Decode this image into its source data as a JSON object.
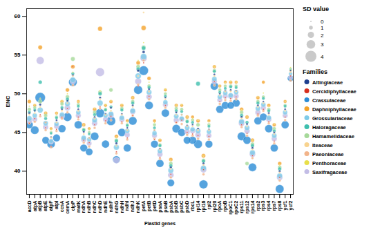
{
  "chart_data": {
    "type": "scatter",
    "x_label": "Plastid genes",
    "y_label": "ENC",
    "ylim": [
      37,
      61
    ],
    "yticks": [
      40,
      45,
      50,
      55,
      60
    ],
    "legend": "right",
    "legend_title": "Families",
    "size_title": "SD value",
    "size_ticks": [
      0,
      1,
      2,
      3,
      4
    ],
    "categories": [
      "accD",
      "atpA",
      "atpB",
      "atpE",
      "atpF",
      "atpI",
      "ccsA",
      "cemA",
      "clpP",
      "matK",
      "ndhA",
      "ndhB",
      "ndhC",
      "ndhD",
      "ndhE",
      "ndhF",
      "ndhG",
      "ndhH",
      "ndhI",
      "ndhJ",
      "ndhK",
      "petA",
      "petB",
      "petD",
      "psaA",
      "psaB",
      "psbA",
      "psbB",
      "psbC",
      "psbD",
      "rbcL",
      "rpl14",
      "rpl16",
      "rpl2",
      "rpl20",
      "rpoA",
      "rpoB",
      "rpoC1",
      "rpoC2",
      "rps11",
      "rps12",
      "rps14",
      "rps2",
      "rps3",
      "rps4",
      "rps7",
      "rps8",
      "ycf1",
      "ycf2"
    ],
    "series": [
      {
        "name": "Altingiaceae",
        "color": "#1f3f8f",
        "values": [
          47.5,
          47.8,
          48.6,
          46.3,
          44.4,
          46.6,
          48.0,
          49.1,
          52.4,
          48.0,
          45.1,
          44.3,
          47.0,
          49.5,
          47.4,
          48.2,
          43.6,
          47.4,
          45.6,
          48.5,
          53.0,
          55.4,
          50.6,
          45.3,
          42.9,
          49.5,
          40.5,
          47.6,
          47.3,
          45.9,
          46.0,
          45.5,
          41.0,
          45.4,
          52.5,
          50.0,
          50.4,
          50.5,
          50.4,
          47.0,
          46.1,
          43.0,
          48.5,
          49.0,
          47.5,
          45.0,
          40.0,
          48.0,
          53.0
        ],
        "sd": [
          0.3,
          0.2,
          0.4,
          0.3,
          0.2,
          0.3,
          0.2,
          0.3,
          0.4,
          0.2,
          0.3,
          0.2,
          0.3,
          0.4,
          0.2,
          0.3,
          0.4,
          0.3,
          0.2,
          0.3,
          0.5,
          0.6,
          0.3,
          0.2,
          0.3,
          0.2,
          0.4,
          0.3,
          0.2,
          0.3,
          0.2,
          0.3,
          0.4,
          0.2,
          0.3,
          0.2,
          0.2,
          0.3,
          0.2,
          0.4,
          0.3,
          0.4,
          0.3,
          0.2,
          0.3,
          0.3,
          0.4,
          0.2,
          0.1
        ]
      },
      {
        "name": "Cercidiphyllaceae",
        "color": "#d7301f",
        "values": [
          46.2,
          46.8,
          47.3,
          45.6,
          43.2,
          45.4,
          47.0,
          48.1,
          53.5,
          47.0,
          44.0,
          43.7,
          46.0,
          48.3,
          46.5,
          47.1,
          42.5,
          46.4,
          44.3,
          47.2,
          51.0,
          54.0,
          49.7,
          44.1,
          41.8,
          48.5,
          39.6,
          46.3,
          46.6,
          45.0,
          44.8,
          44.6,
          40.2,
          44.5,
          51.6,
          49.0,
          49.5,
          49.4,
          49.6,
          46.0,
          44.9,
          42.0,
          47.4,
          48.0,
          46.4,
          43.9,
          39.2,
          47.0,
          52.3
        ],
        "sd": [
          0,
          0,
          0,
          0,
          0,
          0,
          0,
          0,
          0,
          0,
          0,
          0,
          0,
          0,
          0,
          0,
          0,
          0,
          0,
          0,
          0,
          0,
          0,
          0,
          0,
          0,
          0,
          0,
          0,
          0,
          0,
          0,
          0,
          0,
          0,
          0,
          0,
          0,
          0,
          0,
          0,
          0,
          0,
          0,
          0,
          0,
          0,
          0,
          0
        ]
      },
      {
        "name": "Crassulaceae",
        "color": "#2b8cd6",
        "values": [
          46.0,
          45.3,
          49.5,
          44.0,
          43.5,
          44.3,
          45.5,
          47.0,
          51.5,
          46.0,
          43.0,
          42.5,
          44.5,
          47.5,
          43.5,
          46.5,
          41.5,
          45.0,
          43.0,
          46.5,
          50.5,
          53.0,
          48.5,
          43.5,
          41.0,
          47.5,
          38.5,
          45.5,
          45.0,
          44.0,
          44.0,
          43.5,
          38.3,
          43.5,
          51.0,
          48.0,
          48.5,
          48.5,
          48.8,
          44.5,
          44.0,
          40.5,
          46.5,
          47.0,
          45.5,
          43.0,
          37.7,
          46.0,
          52.0
        ],
        "sd": [
          2.5,
          2.8,
          3.6,
          2.4,
          2.7,
          2.5,
          2.6,
          3.0,
          2.9,
          2.7,
          2.5,
          2.4,
          2.8,
          3.1,
          2.6,
          3.2,
          2.5,
          2.7,
          2.6,
          2.9,
          3.0,
          3.3,
          2.8,
          2.5,
          2.6,
          2.7,
          2.4,
          2.8,
          2.6,
          2.5,
          2.6,
          2.9,
          3.0,
          2.5,
          2.7,
          2.6,
          2.5,
          2.4,
          2.6,
          2.9,
          2.7,
          2.8,
          2.6,
          2.5,
          2.7,
          2.6,
          2.9,
          2.6,
          2.0
        ]
      },
      {
        "name": "Daphniphyllaceae",
        "color": "#f4a32a",
        "values": [
          49.0,
          48.5,
          56.0,
          47.5,
          45.5,
          47.5,
          49.0,
          50.5,
          53.5,
          49.0,
          46.0,
          45.5,
          48.0,
          58.4,
          48.5,
          49.0,
          44.5,
          48.5,
          46.5,
          49.5,
          54.0,
          58.5,
          52.0,
          46.5,
          44.0,
          50.5,
          41.5,
          48.5,
          48.5,
          47.0,
          47.0,
          46.5,
          42.0,
          46.5,
          53.5,
          51.0,
          51.5,
          51.5,
          51.5,
          48.0,
          47.0,
          44.0,
          49.5,
          51.5,
          48.5,
          46.0,
          41.0,
          49.0,
          53.0
        ],
        "sd": [
          1.0,
          0.8,
          1.2,
          0.9,
          0.7,
          0.8,
          0.9,
          1.0,
          1.1,
          0.8,
          0.9,
          0.7,
          1.0,
          1.3,
          0.8,
          0.9,
          1.0,
          0.9,
          0.8,
          0.9,
          1.1,
          1.4,
          1.0,
          0.8,
          0.9,
          0.8,
          1.0,
          0.9,
          0.8,
          0.9,
          0.8,
          1.0,
          1.1,
          0.8,
          0.9,
          0.8,
          0.8,
          0.9,
          0.8,
          1.0,
          0.9,
          1.0,
          0.9,
          0.8,
          0.9,
          0.9,
          1.0,
          0.8,
          0.5
        ]
      },
      {
        "name": "Grossulariaceae",
        "color": "#7fcbe8",
        "values": [
          46.8,
          47.2,
          47.9,
          46.2,
          43.9,
          46.1,
          47.3,
          48.7,
          51.8,
          47.6,
          44.3,
          44.1,
          46.6,
          48.8,
          47.2,
          47.4,
          43.1,
          46.9,
          45.2,
          47.8,
          52.3,
          54.8,
          50.2,
          44.9,
          42.6,
          48.9,
          40.1,
          47.1,
          46.8,
          45.6,
          45.4,
          45.2,
          40.4,
          45.1,
          51.9,
          49.6,
          50.1,
          49.8,
          50.2,
          46.4,
          45.6,
          42.4,
          48.1,
          48.6,
          46.9,
          44.6,
          39.4,
          47.6,
          52.6
        ],
        "sd": [
          1.6,
          1.4,
          1.8,
          1.5,
          1.3,
          1.4,
          1.5,
          1.6,
          1.7,
          1.4,
          1.5,
          1.3,
          1.6,
          1.8,
          1.4,
          1.6,
          1.7,
          1.5,
          1.4,
          1.6,
          1.9,
          2.0,
          1.6,
          1.4,
          1.5,
          1.4,
          1.7,
          1.5,
          1.4,
          1.5,
          1.4,
          1.6,
          1.8,
          1.4,
          1.5,
          1.4,
          1.4,
          1.5,
          1.4,
          1.7,
          1.6,
          1.7,
          1.5,
          1.4,
          1.5,
          1.5,
          1.7,
          1.4,
          1.0
        ]
      },
      {
        "name": "Haloragaceae",
        "color": "#3fbfae",
        "values": [
          47.6,
          47.9,
          51.5,
          46.8,
          44.9,
          46.9,
          48.2,
          49.3,
          52.6,
          48.4,
          45.3,
          44.8,
          47.3,
          50.0,
          47.9,
          48.3,
          43.9,
          47.9,
          45.9,
          48.8,
          53.2,
          55.9,
          50.8,
          45.6,
          43.3,
          49.7,
          40.7,
          47.8,
          47.7,
          46.4,
          46.3,
          51.3,
          41.3,
          45.8,
          52.9,
          50.2,
          50.7,
          50.9,
          50.8,
          47.2,
          46.3,
          43.3,
          48.8,
          49.4,
          47.8,
          45.2,
          40.3,
          48.4,
          53.2
        ],
        "sd": [
          0.8,
          0.7,
          1.0,
          0.8,
          0.6,
          0.7,
          0.8,
          0.9,
          0.8,
          0.7,
          0.8,
          0.6,
          0.8,
          1.0,
          0.7,
          0.8,
          0.9,
          0.8,
          0.7,
          0.8,
          1.0,
          1.1,
          0.8,
          0.7,
          0.8,
          0.7,
          0.9,
          0.8,
          0.7,
          0.8,
          0.7,
          1.2,
          0.9,
          0.7,
          0.8,
          0.7,
          0.7,
          0.8,
          0.7,
          0.9,
          0.8,
          0.9,
          0.8,
          0.7,
          0.8,
          0.8,
          0.9,
          0.7,
          0.5
        ]
      },
      {
        "name": "Hamamelidaceae",
        "color": "#a6d99a",
        "values": [
          48.0,
          48.2,
          49.0,
          47.2,
          45.0,
          47.0,
          48.7,
          49.6,
          54.5,
          48.6,
          45.4,
          45.0,
          47.6,
          50.2,
          48.0,
          50.5,
          44.0,
          48.1,
          46.0,
          49.0,
          53.5,
          56.0,
          51.0,
          46.0,
          43.4,
          50.0,
          41.0,
          48.1,
          48.0,
          46.5,
          46.6,
          46.0,
          41.4,
          46.0,
          53.0,
          50.5,
          51.0,
          51.0,
          51.0,
          47.6,
          41.0,
          43.5,
          49.0,
          49.6,
          48.0,
          45.5,
          40.5,
          48.5,
          53.1
        ],
        "sd": [
          0.9,
          0.8,
          1.1,
          0.9,
          0.7,
          0.8,
          0.9,
          1.0,
          1.2,
          0.8,
          0.9,
          0.7,
          0.9,
          1.1,
          0.8,
          1.0,
          1.0,
          0.9,
          0.8,
          0.9,
          1.1,
          1.2,
          0.9,
          0.8,
          0.9,
          0.8,
          1.0,
          0.9,
          0.8,
          0.9,
          0.8,
          1.0,
          1.0,
          0.8,
          0.9,
          0.8,
          0.8,
          0.9,
          0.8,
          1.0,
          1.0,
          1.0,
          0.9,
          0.8,
          0.9,
          0.9,
          1.0,
          0.8,
          0.4
        ]
      },
      {
        "name": "Iteaceae",
        "color": "#f8d38f",
        "values": [
          47.3,
          47.5,
          48.3,
          46.3,
          44.3,
          46.3,
          47.8,
          48.8,
          52.3,
          47.8,
          44.8,
          44.3,
          46.8,
          49.3,
          47.3,
          47.8,
          43.3,
          47.3,
          45.3,
          48.3,
          52.3,
          60.5,
          50.3,
          45.3,
          42.8,
          49.3,
          40.3,
          47.3,
          47.3,
          45.8,
          45.8,
          45.3,
          40.8,
          45.3,
          52.3,
          49.8,
          50.3,
          50.3,
          50.3,
          46.8,
          45.8,
          42.8,
          48.3,
          48.8,
          47.3,
          44.8,
          39.8,
          47.8,
          52.8
        ],
        "sd": [
          0.2,
          0.2,
          0.2,
          0.2,
          0.2,
          0.2,
          0.2,
          0.2,
          0.2,
          0.2,
          0.2,
          0.2,
          0.2,
          0.2,
          0.2,
          0.2,
          0.2,
          0.2,
          0.2,
          0.2,
          0.2,
          0.2,
          0.2,
          0.2,
          0.2,
          0.2,
          0.2,
          0.2,
          0.2,
          0.2,
          0.2,
          0.2,
          0.2,
          0.2,
          0.2,
          0.2,
          0.2,
          0.2,
          0.2,
          0.2,
          0.2,
          0.2,
          0.2,
          0.2,
          0.2,
          0.2,
          0.2,
          0.2,
          0.2
        ]
      },
      {
        "name": "Paeoniaceae",
        "color": "#f2b48a",
        "values": [
          46.2,
          46.4,
          47.1,
          45.3,
          43.1,
          45.2,
          46.8,
          47.6,
          51.1,
          46.7,
          43.7,
          43.2,
          45.6,
          48.1,
          46.2,
          46.6,
          42.3,
          46.2,
          44.1,
          47.2,
          51.2,
          54.3,
          49.3,
          44.2,
          41.6,
          48.2,
          39.2,
          46.3,
          46.1,
          44.7,
          44.6,
          44.2,
          39.6,
          44.1,
          51.1,
          48.7,
          49.2,
          49.1,
          49.3,
          45.7,
          44.6,
          41.7,
          47.2,
          47.8,
          46.2,
          43.6,
          38.8,
          46.6,
          51.7
        ],
        "sd": [
          0.5,
          0.5,
          0.5,
          0.5,
          0.5,
          0.5,
          0.5,
          0.5,
          0.5,
          0.5,
          0.5,
          0.5,
          0.5,
          0.5,
          0.5,
          0.5,
          0.5,
          0.5,
          0.5,
          0.5,
          0.5,
          0.5,
          0.5,
          0.5,
          0.5,
          0.5,
          0.5,
          0.5,
          0.5,
          0.5,
          0.5,
          0.5,
          0.5,
          0.5,
          0.5,
          0.5,
          0.5,
          0.5,
          0.5,
          0.5,
          0.5,
          0.5,
          0.5,
          0.5,
          0.5,
          0.5,
          0.5,
          0.5,
          0.5
        ]
      },
      {
        "name": "Penthoraceae",
        "color": "#e8df4a",
        "values": [
          48.4,
          48.6,
          49.4,
          47.6,
          45.4,
          47.5,
          49.1,
          50.0,
          52.8,
          49.0,
          46.0,
          45.4,
          48.1,
          50.4,
          48.6,
          49.1,
          44.4,
          48.6,
          46.4,
          49.5,
          54.3,
          56.6,
          51.5,
          46.3,
          44.1,
          50.6,
          41.4,
          48.5,
          48.6,
          47.0,
          46.8,
          46.6,
          42.0,
          46.4,
          53.5,
          51.0,
          51.4,
          51.6,
          51.5,
          47.9,
          47.0,
          44.0,
          49.6,
          50.1,
          48.4,
          46.1,
          40.8,
          49.0,
          53.4
        ],
        "sd": [
          0,
          0,
          0,
          0,
          0,
          0,
          0,
          0,
          0,
          0,
          0,
          0,
          0,
          0,
          0,
          0,
          0,
          0,
          0,
          0,
          0,
          0,
          0,
          0,
          0,
          0,
          0,
          0,
          0,
          0,
          0,
          0,
          0,
          0,
          0,
          0,
          0,
          0,
          0,
          0,
          0,
          0,
          0,
          0,
          0,
          0,
          0,
          0,
          0
        ]
      },
      {
        "name": "Saxifragaceae",
        "color": "#c3bde6",
        "values": [
          46.5,
          46.7,
          54.3,
          45.7,
          43.8,
          45.8,
          47.1,
          48.2,
          51.6,
          47.2,
          44.1,
          43.6,
          46.2,
          52.8,
          46.7,
          47.2,
          41.4,
          46.7,
          44.7,
          47.7,
          51.6,
          54.6,
          49.6,
          44.6,
          42.2,
          48.6,
          39.5,
          46.6,
          46.7,
          45.1,
          45.2,
          44.7,
          40.2,
          44.6,
          51.6,
          49.2,
          49.7,
          49.7,
          49.7,
          46.2,
          45.2,
          42.2,
          47.6,
          48.2,
          46.7,
          44.2,
          39.2,
          47.2,
          52.1
        ],
        "sd": [
          1.8,
          1.6,
          2.6,
          1.7,
          1.5,
          1.6,
          1.7,
          1.9,
          1.8,
          1.6,
          1.7,
          1.5,
          1.8,
          3.0,
          1.6,
          1.8,
          2.0,
          1.7,
          1.6,
          1.8,
          2.1,
          2.2,
          1.8,
          1.6,
          1.7,
          1.6,
          1.9,
          1.7,
          1.6,
          1.7,
          1.6,
          1.8,
          2.0,
          1.6,
          1.7,
          1.6,
          1.6,
          1.7,
          1.6,
          1.9,
          1.8,
          1.9,
          1.7,
          1.6,
          1.7,
          1.7,
          1.9,
          1.6,
          1.2
        ]
      }
    ]
  }
}
